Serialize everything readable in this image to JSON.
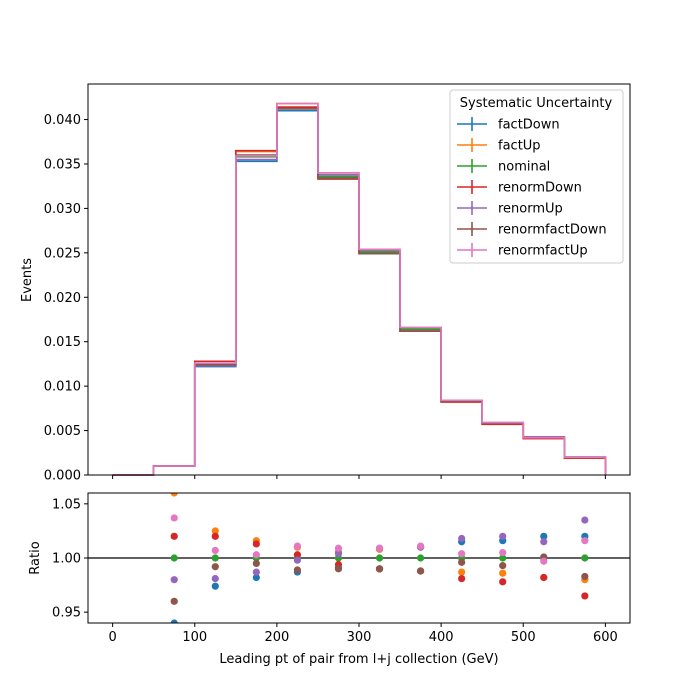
{
  "chart_data": [
    {
      "type": "line",
      "panel": "main",
      "drawstyle": "steps",
      "ylabel": "Events",
      "xlim": [
        -30,
        630
      ],
      "ylim": [
        0,
        0.044
      ],
      "xticks": [
        0,
        100,
        200,
        300,
        400,
        500,
        600
      ],
      "yticks": [
        0.0,
        0.005,
        0.01,
        0.015,
        0.02,
        0.025,
        0.03,
        0.035,
        0.04
      ],
      "ytick_labels": [
        "0.000",
        "0.005",
        "0.010",
        "0.015",
        "0.020",
        "0.025",
        "0.030",
        "0.035",
        "0.040"
      ],
      "bin_edges": [
        0,
        50,
        100,
        150,
        200,
        250,
        300,
        350,
        400,
        450,
        500,
        550,
        600
      ],
      "legend": {
        "title": "Systematic Uncertainty",
        "placement": "top-right"
      },
      "series": [
        {
          "name": "factDown",
          "color": "#1f77b4",
          "values": [
            0.0,
            0.001,
            0.0122,
            0.0353,
            0.041,
            0.0335,
            0.025,
            0.0162,
            0.0083,
            0.0058,
            0.0043,
            0.002
          ]
        },
        {
          "name": "factUp",
          "color": "#ff7f0e",
          "values": [
            0.0,
            0.001,
            0.0128,
            0.0364,
            0.0418,
            0.0338,
            0.0252,
            0.0165,
            0.0084,
            0.0058,
            0.0041,
            0.0019
          ]
        },
        {
          "name": "nominal",
          "color": "#2ca02c",
          "values": [
            0.0,
            0.001,
            0.0125,
            0.0358,
            0.0413,
            0.0336,
            0.0251,
            0.0164,
            0.0083,
            0.0058,
            0.0042,
            0.002
          ]
        },
        {
          "name": "renormDown",
          "color": "#d62728",
          "values": [
            0.0,
            0.001,
            0.0128,
            0.0365,
            0.0414,
            0.0333,
            0.0249,
            0.0162,
            0.0082,
            0.0057,
            0.0041,
            0.0019
          ]
        },
        {
          "name": "renormUp",
          "color": "#9467bd",
          "values": [
            0.0,
            0.001,
            0.0123,
            0.0355,
            0.0412,
            0.0338,
            0.0253,
            0.0166,
            0.0084,
            0.0059,
            0.0043,
            0.002
          ]
        },
        {
          "name": "renormfactDown",
          "color": "#8c564b",
          "values": [
            0.0,
            0.001,
            0.0124,
            0.036,
            0.0412,
            0.0334,
            0.0249,
            0.0162,
            0.0083,
            0.0058,
            0.0042,
            0.002
          ]
        },
        {
          "name": "renormfactUp",
          "color": "#e377c2",
          "values": [
            0.0,
            0.001,
            0.0126,
            0.0359,
            0.0418,
            0.034,
            0.0254,
            0.0166,
            0.0084,
            0.0059,
            0.0042,
            0.002
          ]
        }
      ]
    },
    {
      "type": "scatter",
      "panel": "ratio",
      "xlabel": "Leading pt of pair from l+j collection (GeV)",
      "ylabel": "Ratio",
      "xlim": [
        -30,
        630
      ],
      "ylim": [
        0.94,
        1.06
      ],
      "xticks": [
        0,
        100,
        200,
        300,
        400,
        500,
        600
      ],
      "yticks": [
        0.95,
        1.0,
        1.05
      ],
      "ytick_labels": [
        "0.95",
        "1.00",
        "1.05"
      ],
      "reference_line": 1.0,
      "x": [
        75,
        125,
        175,
        225,
        275,
        325,
        375,
        425,
        475,
        525,
        575
      ],
      "series": [
        {
          "name": "factDown",
          "color": "#1f77b4",
          "values": [
            0.94,
            0.974,
            0.982,
            0.987,
            0.991,
            0.99,
            0.988,
            1.015,
            1.016,
            1.02,
            1.02
          ]
        },
        {
          "name": "factUp",
          "color": "#ff7f0e",
          "values": [
            1.06,
            1.025,
            1.016,
            1.01,
            1.006,
            1.008,
            1.01,
            0.987,
            0.986,
            0.982,
            0.98
          ]
        },
        {
          "name": "nominal",
          "color": "#2ca02c",
          "values": [
            1.0,
            1.0,
            1.0,
            1.0,
            1.0,
            1.0,
            1.0,
            1.0,
            1.0,
            1.0,
            1.0
          ]
        },
        {
          "name": "renormDown",
          "color": "#d62728",
          "values": [
            1.02,
            1.02,
            1.013,
            1.003,
            0.994,
            0.99,
            0.988,
            0.981,
            0.978,
            0.982,
            0.965
          ]
        },
        {
          "name": "renormUp",
          "color": "#9467bd",
          "values": [
            0.98,
            0.981,
            0.987,
            0.998,
            1.004,
            1.009,
            1.01,
            1.018,
            1.02,
            1.015,
            1.035
          ]
        },
        {
          "name": "renormfactDown",
          "color": "#8c564b",
          "values": [
            0.96,
            0.992,
            0.995,
            0.989,
            0.99,
            0.99,
            0.988,
            0.996,
            0.993,
            1.001,
            0.983
          ]
        },
        {
          "name": "renormfactUp",
          "color": "#e377c2",
          "values": [
            1.037,
            1.007,
            1.003,
            1.011,
            1.009,
            1.009,
            1.011,
            1.004,
            1.005,
            0.997,
            1.016
          ]
        }
      ]
    }
  ]
}
